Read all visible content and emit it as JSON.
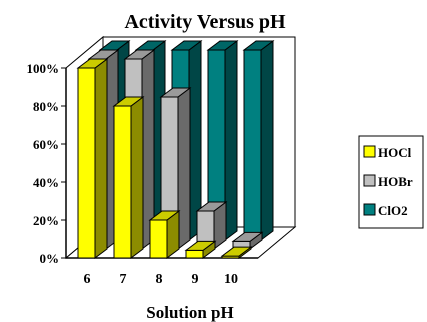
{
  "chart_data": {
    "type": "bar",
    "title": "Activity Versus pH",
    "xlabel": "Solution pH",
    "ylabel": "",
    "categories": [
      "6",
      "7",
      "8",
      "9",
      "10"
    ],
    "y_tick_labels": [
      "0%",
      "20%",
      "40%",
      "60%",
      "80%",
      "100%"
    ],
    "ylim": [
      0,
      100
    ],
    "grid": false,
    "legend_position": "right",
    "series": [
      {
        "name": "HOCl",
        "color": "#ffff00",
        "values": [
          100,
          80,
          20,
          4,
          1
        ]
      },
      {
        "name": "HOBr",
        "color": "#c0c0c0",
        "values": [
          100,
          100,
          80,
          20,
          4
        ]
      },
      {
        "name": "ClO2",
        "color": "#008080",
        "values": [
          100,
          100,
          100,
          100,
          100
        ]
      }
    ]
  }
}
